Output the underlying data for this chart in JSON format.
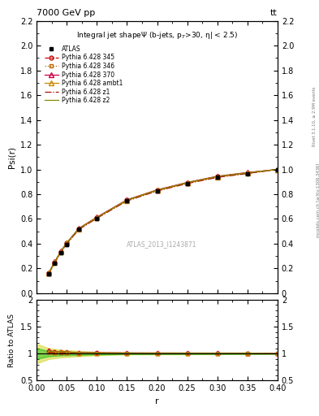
{
  "title_top": "7000 GeV pp",
  "title_top_right": "tt",
  "xlabel": "r",
  "ylabel_main": "Psi(r)",
  "ylabel_ratio": "Ratio to ATLAS",
  "watermark": "ATLAS_2013_I1243871",
  "right_label": "Rivet 3.1.10, ≥ 2.9M events",
  "right_label2": "mcplots.cern.ch [arXiv:1306.3436]",
  "xlim": [
    0,
    0.4
  ],
  "ylim_main": [
    0,
    2.2
  ],
  "ylim_ratio": [
    0.5,
    2.0
  ],
  "yticks_main": [
    0,
    0.2,
    0.4,
    0.6,
    0.8,
    1.0,
    1.2,
    1.4,
    1.6,
    1.8,
    2.0,
    2.2
  ],
  "yticks_ratio": [
    0.5,
    1.0,
    1.5,
    2.0
  ],
  "xticks": [
    0.0,
    0.05,
    0.1,
    0.15,
    0.2,
    0.25,
    0.3,
    0.35,
    0.4
  ],
  "x_data": [
    0.02,
    0.03,
    0.04,
    0.05,
    0.07,
    0.1,
    0.15,
    0.2,
    0.25,
    0.3,
    0.35,
    0.4
  ],
  "atlas_y": [
    0.155,
    0.245,
    0.325,
    0.395,
    0.515,
    0.605,
    0.745,
    0.825,
    0.885,
    0.935,
    0.965,
    1.0
  ],
  "atlas_yerr": [
    0.012,
    0.012,
    0.012,
    0.012,
    0.012,
    0.012,
    0.012,
    0.01,
    0.01,
    0.01,
    0.008,
    0.006
  ],
  "p345_y": [
    0.162,
    0.252,
    0.335,
    0.405,
    0.52,
    0.612,
    0.752,
    0.832,
    0.892,
    0.942,
    0.972,
    1.0
  ],
  "p346_y": [
    0.16,
    0.249,
    0.332,
    0.402,
    0.517,
    0.608,
    0.748,
    0.828,
    0.888,
    0.938,
    0.968,
    1.0
  ],
  "p370_y": [
    0.164,
    0.254,
    0.338,
    0.408,
    0.524,
    0.615,
    0.755,
    0.835,
    0.895,
    0.945,
    0.975,
    1.0
  ],
  "pambt1_y": [
    0.161,
    0.251,
    0.334,
    0.404,
    0.519,
    0.61,
    0.75,
    0.83,
    0.89,
    0.94,
    0.97,
    1.0
  ],
  "pz1_y": [
    0.159,
    0.248,
    0.33,
    0.4,
    0.515,
    0.606,
    0.746,
    0.826,
    0.886,
    0.936,
    0.967,
    1.0
  ],
  "pz2_y": [
    0.163,
    0.253,
    0.337,
    0.407,
    0.522,
    0.613,
    0.753,
    0.833,
    0.893,
    0.943,
    0.973,
    1.0
  ],
  "color_345": "#cc0000",
  "color_346": "#bb6600",
  "color_370": "#cc0044",
  "color_ambt1": "#cc8800",
  "color_z1": "#aa1100",
  "color_z2": "#888800",
  "color_atlas": "#000000",
  "ratio_band_green": "#00bb00",
  "ratio_band_yellow": "#cccc00",
  "ratio_band_green_alpha": 0.45,
  "ratio_band_yellow_alpha": 0.45
}
